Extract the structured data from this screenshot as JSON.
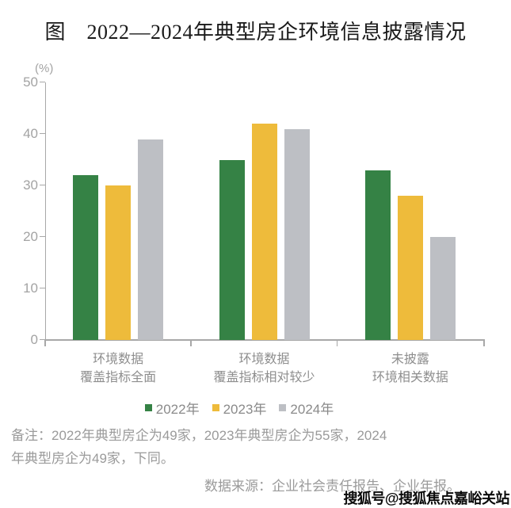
{
  "figure": {
    "title": "图　2022—2024年典型房企环境信息披露情况"
  },
  "chart_data": {
    "type": "bar",
    "title": "2022—2024年典型房企环境信息披露情况",
    "unit_label": "(%)",
    "categories": [
      [
        "环境数据",
        "覆盖指标全面"
      ],
      [
        "环境数据",
        "覆盖指标相对较少"
      ],
      [
        "未披露",
        "环境相关数据"
      ]
    ],
    "series": [
      {
        "name": "2022年",
        "color": "#358245",
        "values": [
          32,
          35,
          33
        ]
      },
      {
        "name": "2023年",
        "color": "#EEBB3B",
        "values": [
          30,
          42,
          28
        ]
      },
      {
        "name": "2024年",
        "color": "#BDBFC4",
        "values": [
          39,
          41,
          20
        ]
      }
    ],
    "ylim": [
      0,
      50
    ],
    "yticks": [
      0,
      10,
      20,
      30,
      40,
      50
    ],
    "grid": false,
    "legend_position": "bottom",
    "axis_color": "#a8a8a8",
    "tick_label_color": "#a3a3a3",
    "category_label_color": "#8e8e8e",
    "legend_label_color": "#8a8a8a"
  },
  "notes": {
    "lines": [
      "备注：2022年典型房企为49家，2023年典型房企为55家，2024",
      "年典型房企为49家，下同。"
    ]
  },
  "source": "数据来源：企业社会责任报告、企业年报。",
  "watermark": "搜狐号@搜狐焦点嘉峪关站"
}
